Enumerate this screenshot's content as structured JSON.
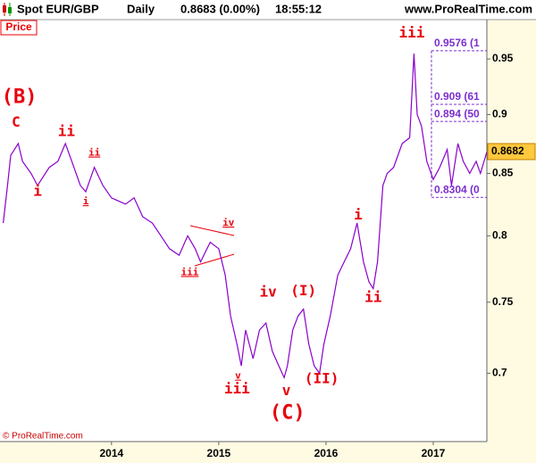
{
  "header": {
    "symbol": "Spot EUR/GBP",
    "period": "Daily",
    "quote": "0.8683 (0.00%)",
    "time": "18:55:12",
    "site": "www.ProRealTime.com"
  },
  "chart_data": {
    "type": "line",
    "panel_label": "Price",
    "copyright": "© ProRealTime.com",
    "log_scale": true,
    "color": "#8a00cc",
    "x": [
      2012.99,
      2013.03,
      2013.06,
      2013.13,
      2013.17,
      2013.25,
      2013.31,
      2013.42,
      2013.5,
      2013.57,
      2013.63,
      2013.71,
      2013.76,
      2013.84,
      2013.92,
      2014.0,
      2014.13,
      2014.21,
      2014.29,
      2014.38,
      2014.46,
      2014.54,
      2014.63,
      2014.71,
      2014.78,
      2014.83,
      2014.92,
      2015.0,
      2015.06,
      2015.11,
      2015.17,
      2015.21,
      2015.25,
      2015.32,
      2015.38,
      2015.44,
      2015.5,
      2015.56,
      2015.61,
      2015.64,
      2015.69,
      2015.74,
      2015.79,
      2015.84,
      2015.89,
      2015.94,
      2015.98,
      2016.04,
      2016.11,
      2016.17,
      2016.23,
      2016.29,
      2016.35,
      2016.4,
      2016.44,
      2016.48,
      2016.53,
      2016.57,
      2016.63,
      2016.71,
      2016.78,
      2016.82,
      2016.85,
      2016.89,
      2016.94,
      2017.0,
      2017.06,
      2017.13,
      2017.17,
      2017.23,
      2017.28,
      2017.34,
      2017.4,
      2017.44,
      2017.5
    ],
    "values": [
      0.81,
      0.84,
      0.865,
      0.875,
      0.86,
      0.85,
      0.84,
      0.855,
      0.86,
      0.875,
      0.86,
      0.84,
      0.835,
      0.855,
      0.84,
      0.83,
      0.825,
      0.83,
      0.815,
      0.81,
      0.8,
      0.79,
      0.785,
      0.8,
      0.79,
      0.78,
      0.795,
      0.79,
      0.77,
      0.74,
      0.72,
      0.705,
      0.73,
      0.71,
      0.73,
      0.735,
      0.715,
      0.705,
      0.697,
      0.705,
      0.73,
      0.74,
      0.745,
      0.72,
      0.705,
      0.7,
      0.72,
      0.74,
      0.77,
      0.78,
      0.79,
      0.81,
      0.78,
      0.765,
      0.76,
      0.78,
      0.84,
      0.85,
      0.855,
      0.875,
      0.88,
      0.955,
      0.9,
      0.89,
      0.86,
      0.845,
      0.855,
      0.87,
      0.84,
      0.875,
      0.86,
      0.85,
      0.86,
      0.85,
      0.868
    ],
    "xlim": [
      2012.96,
      2017.5
    ],
    "ylim": [
      0.655,
      0.987
    ],
    "xticks": [
      2014,
      2015,
      2016,
      2017
    ],
    "yticks": [
      0.7,
      0.75,
      0.8,
      0.85,
      0.9,
      0.95
    ],
    "last_value": 0.8682,
    "level_color": "#7b2fd0",
    "levels": [
      {
        "value": 0.9576,
        "label": "0.9576 (1"
      },
      {
        "value": 0.909,
        "label": "0.909 (61"
      },
      {
        "value": 0.894,
        "label": "0.894 (50"
      },
      {
        "value": 0.8304,
        "label": "0.8304 (0"
      }
    ],
    "annotation_color": "#e8000b",
    "annotations": [
      {
        "text": "(B)",
        "x": 2013.14,
        "y": 0.915,
        "size": "large"
      },
      {
        "text": "C",
        "x": 2013.11,
        "y": 0.893,
        "size": "medium"
      },
      {
        "text": "i",
        "x": 2013.31,
        "y": 0.835,
        "size": "medium"
      },
      {
        "text": "ii",
        "x": 2013.58,
        "y": 0.885,
        "size": "medium"
      },
      {
        "text": "i",
        "x": 2013.76,
        "y": 0.827,
        "size": "small"
      },
      {
        "text": "ii",
        "x": 2013.84,
        "y": 0.867,
        "size": "small"
      },
      {
        "text": "iii",
        "x": 2014.73,
        "y": 0.772,
        "size": "small"
      },
      {
        "text": "iv",
        "x": 2015.09,
        "y": 0.81,
        "size": "small"
      },
      {
        "text": "v",
        "x": 2015.18,
        "y": 0.698,
        "size": "small"
      },
      {
        "text": "iii",
        "x": 2015.17,
        "y": 0.689,
        "size": "medium"
      },
      {
        "text": "iv",
        "x": 2015.46,
        "y": 0.757,
        "size": "medium"
      },
      {
        "text": "v",
        "x": 2015.63,
        "y": 0.688,
        "size": "medium"
      },
      {
        "text": "(C)",
        "x": 2015.64,
        "y": 0.673,
        "size": "large"
      },
      {
        "text": "(I)",
        "x": 2015.79,
        "y": 0.758,
        "size": "medium"
      },
      {
        "text": "(II)",
        "x": 2015.96,
        "y": 0.696,
        "size": "medium"
      },
      {
        "text": "i",
        "x": 2016.3,
        "y": 0.816,
        "size": "medium"
      },
      {
        "text": "ii",
        "x": 2016.44,
        "y": 0.753,
        "size": "medium"
      },
      {
        "text": "iii",
        "x": 2016.8,
        "y": 0.974,
        "size": "medium"
      }
    ]
  }
}
